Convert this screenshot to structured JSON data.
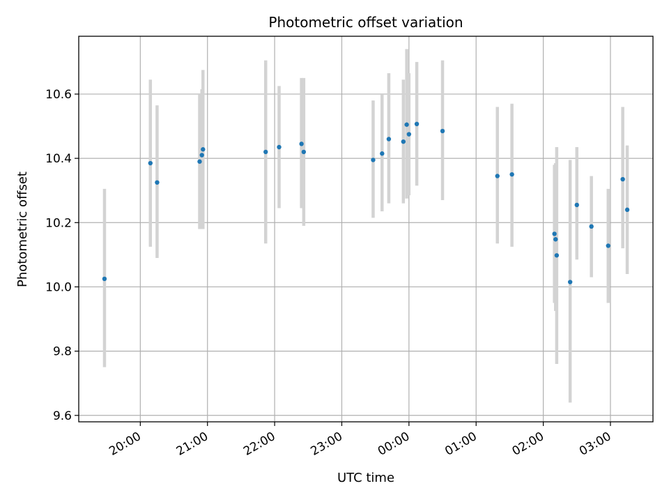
{
  "chart_data": {
    "type": "scatter",
    "title": "Photometric offset variation",
    "xlabel": "UTC time",
    "ylabel": "Photometric offset",
    "x_tick_labels": [
      "20:00",
      "21:00",
      "22:00",
      "23:00",
      "00:00",
      "01:00",
      "02:00",
      "03:00"
    ],
    "y_tick_labels": [
      "9.6",
      "9.8",
      "10.0",
      "10.2",
      "10.4",
      "10.6"
    ],
    "y_ticks": [
      9.6,
      9.8,
      10.0,
      10.2,
      10.4,
      10.6
    ],
    "xlim": [
      "19:05",
      "03:38"
    ],
    "ylim": [
      9.58,
      10.78
    ],
    "grid": true,
    "point_color": "#1f77b4",
    "errorbar_color": "#d3d3d3",
    "series": [
      {
        "points": [
          {
            "time": "19:28",
            "y": 10.025,
            "ylow": 9.75,
            "yhigh": 10.305
          },
          {
            "time": "20:09",
            "y": 10.385,
            "ylow": 10.125,
            "yhigh": 10.645
          },
          {
            "time": "20:15",
            "y": 10.325,
            "ylow": 10.09,
            "yhigh": 10.565
          },
          {
            "time": "20:53",
            "y": 10.39,
            "ylow": 10.18,
            "yhigh": 10.6
          },
          {
            "time": "20:55",
            "y": 10.41,
            "ylow": 10.18,
            "yhigh": 10.615
          },
          {
            "time": "20:56",
            "y": 10.428,
            "ylow": 10.18,
            "yhigh": 10.675
          },
          {
            "time": "21:52",
            "y": 10.42,
            "ylow": 10.135,
            "yhigh": 10.705
          },
          {
            "time": "22:04",
            "y": 10.435,
            "ylow": 10.245,
            "yhigh": 10.625
          },
          {
            "time": "22:24",
            "y": 10.445,
            "ylow": 10.245,
            "yhigh": 10.65
          },
          {
            "time": "22:26",
            "y": 10.42,
            "ylow": 10.19,
            "yhigh": 10.65
          },
          {
            "time": "23:28",
            "y": 10.395,
            "ylow": 10.215,
            "yhigh": 10.58
          },
          {
            "time": "23:36",
            "y": 10.415,
            "ylow": 10.235,
            "yhigh": 10.6
          },
          {
            "time": "23:42",
            "y": 10.46,
            "ylow": 10.26,
            "yhigh": 10.665
          },
          {
            "time": "23:55",
            "y": 10.452,
            "ylow": 10.26,
            "yhigh": 10.645
          },
          {
            "time": "23:58",
            "y": 10.505,
            "ylow": 10.275,
            "yhigh": 10.74
          },
          {
            "time": "00:00",
            "y": 10.475,
            "ylow": 10.285,
            "yhigh": 10.665
          },
          {
            "time": "00:07",
            "y": 10.507,
            "ylow": 10.315,
            "yhigh": 10.7
          },
          {
            "time": "00:30",
            "y": 10.485,
            "ylow": 10.27,
            "yhigh": 10.705
          },
          {
            "time": "01:19",
            "y": 10.345,
            "ylow": 10.135,
            "yhigh": 10.56
          },
          {
            "time": "01:32",
            "y": 10.35,
            "ylow": 10.125,
            "yhigh": 10.57
          },
          {
            "time": "02:10",
            "y": 10.165,
            "ylow": 9.95,
            "yhigh": 10.38
          },
          {
            "time": "02:11",
            "y": 10.148,
            "ylow": 9.925,
            "yhigh": 10.385
          },
          {
            "time": "02:12",
            "y": 10.098,
            "ylow": 9.76,
            "yhigh": 10.435
          },
          {
            "time": "02:24",
            "y": 10.015,
            "ylow": 9.64,
            "yhigh": 10.395
          },
          {
            "time": "02:30",
            "y": 10.255,
            "ylow": 10.085,
            "yhigh": 10.435
          },
          {
            "time": "02:43",
            "y": 10.188,
            "ylow": 10.03,
            "yhigh": 10.345
          },
          {
            "time": "02:58",
            "y": 10.128,
            "ylow": 9.95,
            "yhigh": 10.305
          },
          {
            "time": "03:11",
            "y": 10.335,
            "ylow": 10.12,
            "yhigh": 10.56
          },
          {
            "time": "03:15",
            "y": 10.24,
            "ylow": 10.04,
            "yhigh": 10.44
          }
        ]
      }
    ]
  }
}
